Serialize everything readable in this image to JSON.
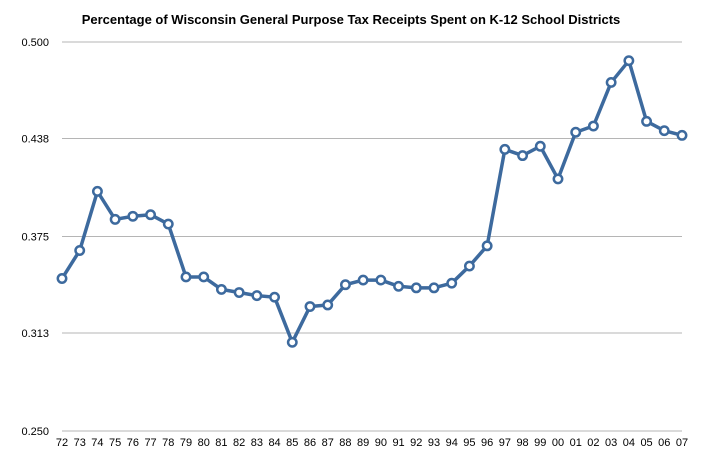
{
  "chart_data": {
    "type": "line",
    "title": "Percentage of Wisconsin General Purpose Tax Receipts Spent on K-12 School Districts",
    "xlabel": "",
    "ylabel": "",
    "categories": [
      "72",
      "73",
      "74",
      "75",
      "76",
      "77",
      "78",
      "79",
      "80",
      "81",
      "82",
      "83",
      "84",
      "85",
      "86",
      "87",
      "88",
      "89",
      "90",
      "91",
      "92",
      "93",
      "94",
      "95",
      "96",
      "97",
      "98",
      "99",
      "00",
      "01",
      "02",
      "03",
      "04",
      "05",
      "06",
      "07"
    ],
    "series": [
      {
        "values": [
          0.348,
          0.366,
          0.404,
          0.386,
          0.388,
          0.389,
          0.383,
          0.349,
          0.349,
          0.341,
          0.339,
          0.337,
          0.336,
          0.307,
          0.33,
          0.331,
          0.344,
          0.347,
          0.347,
          0.343,
          0.342,
          0.342,
          0.345,
          0.356,
          0.369,
          0.431,
          0.427,
          0.433,
          0.412,
          0.442,
          0.446,
          0.474,
          0.488,
          0.449,
          0.443,
          0.44
        ],
        "color": "#3d6a9e"
      }
    ],
    "ylim": [
      0.25,
      0.5
    ],
    "yticks": [
      "0.250",
      "0.313",
      "0.375",
      "0.438",
      "0.500"
    ],
    "grid": true,
    "legend": "none"
  }
}
